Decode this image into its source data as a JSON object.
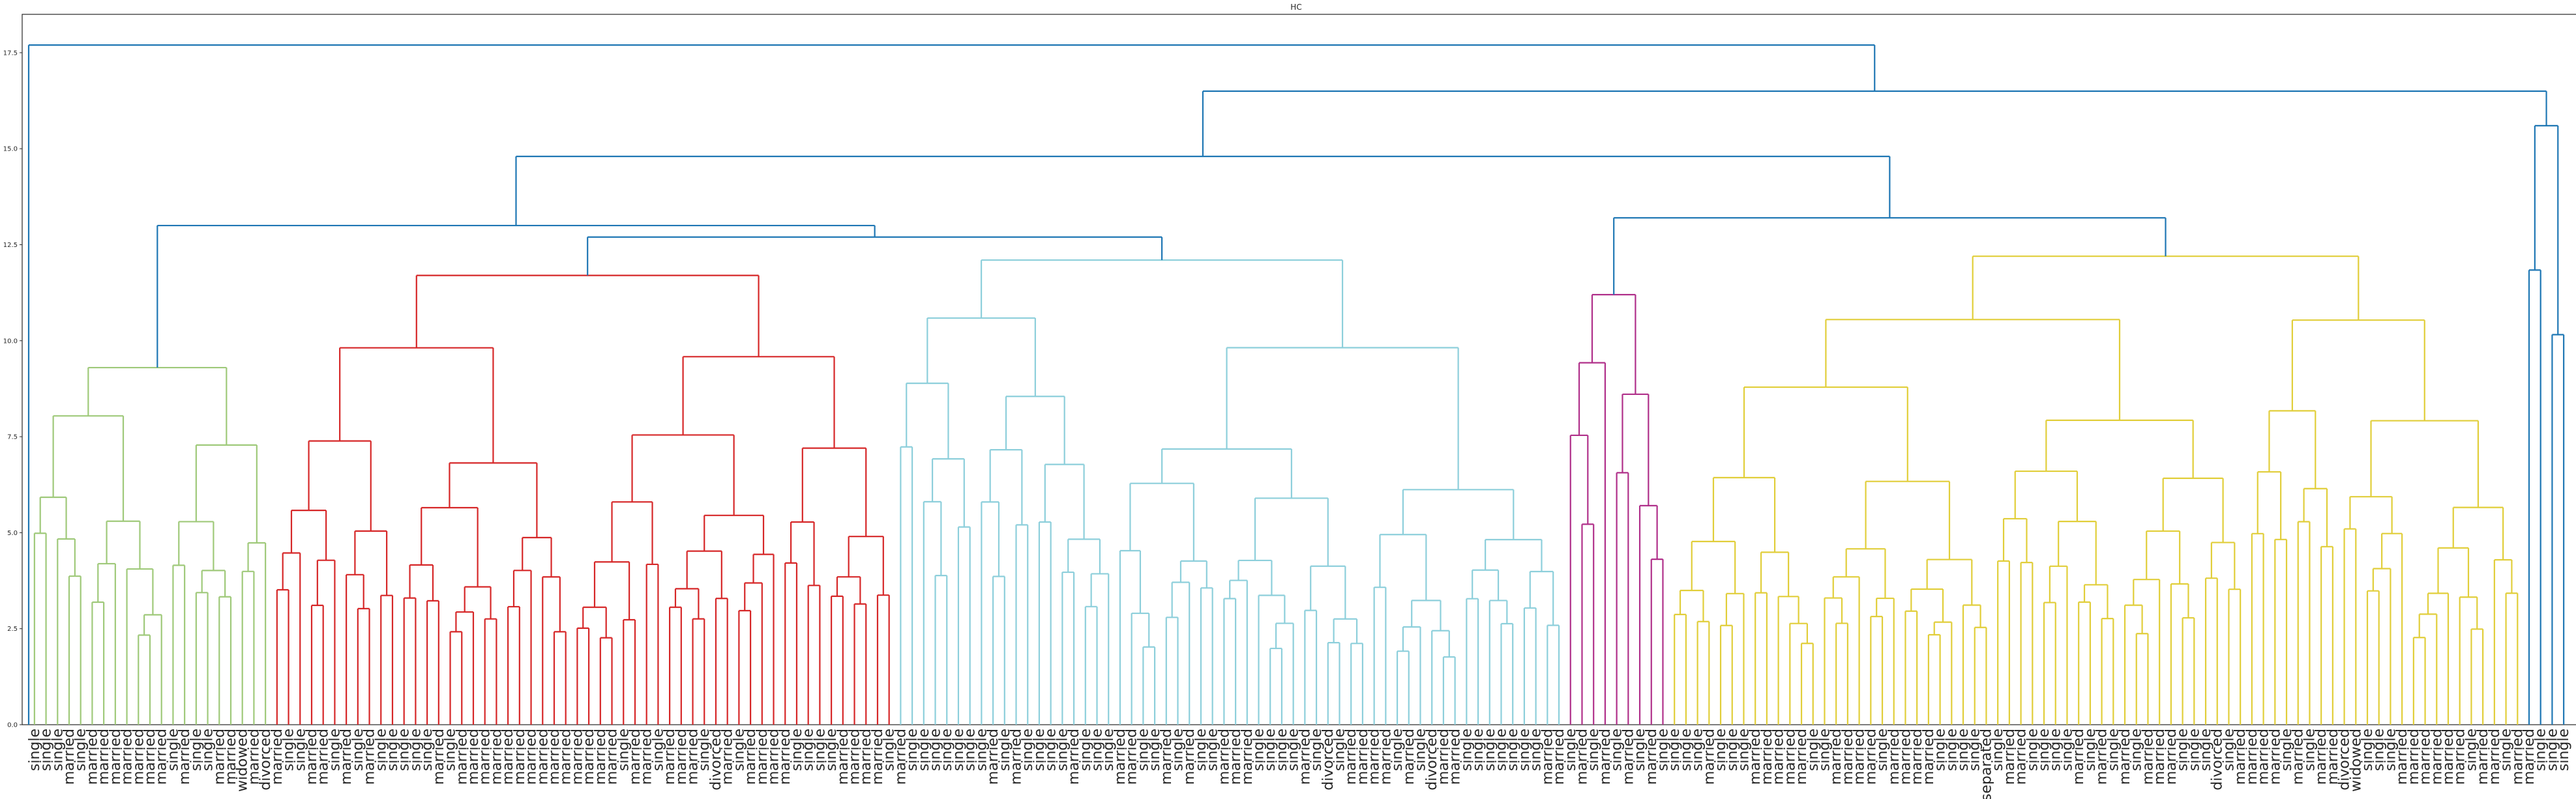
{
  "chart_data": {
    "type": "dendrogram",
    "title": "HC",
    "ylim": [
      0,
      18.5
    ],
    "yticks": [
      0.0,
      2.5,
      5.0,
      7.5,
      10.0,
      12.5,
      15.0,
      17.5
    ],
    "ytick_labels": [
      "0.0",
      "2.5",
      "5.0",
      "7.5",
      "10.0",
      "12.5",
      "15.0",
      "17.5"
    ],
    "grid": false,
    "colors": {
      "above_threshold": "#1f77b4",
      "cluster_1": "#9fc97a",
      "cluster_2": "#d62728",
      "cluster_3": "#8dcfdb",
      "cluster_4": "#b0308a",
      "cluster_5": "#e1ce3a"
    },
    "clusters": [
      {
        "color_key": "cluster_1",
        "labels": [
          "single",
          "single",
          "single",
          "married",
          "single",
          "married",
          "married",
          "married",
          "married",
          "married",
          "married",
          "married",
          "single",
          "married",
          "single",
          "single",
          "married",
          "married",
          "widowed",
          "married",
          "divorced"
        ]
      },
      {
        "color_key": "cluster_2",
        "labels": [
          "married",
          "single",
          "single",
          "married",
          "married",
          "single",
          "married",
          "single",
          "married",
          "single",
          "single",
          "single",
          "single",
          "single",
          "married",
          "single",
          "married",
          "married",
          "married",
          "married",
          "married",
          "married",
          "married",
          "married",
          "married",
          "married",
          "married",
          "married",
          "married",
          "married",
          "single",
          "married",
          "married",
          "single",
          "married",
          "married",
          "married",
          "single",
          "divorced",
          "married",
          "single",
          "married",
          "married",
          "married",
          "married",
          "single",
          "single",
          "single",
          "single",
          "married",
          "married",
          "married",
          "married",
          "single"
        ]
      },
      {
        "color_key": "cluster_3",
        "labels": [
          "married",
          "single",
          "single",
          "single",
          "single",
          "single",
          "single",
          "single",
          "married",
          "single",
          "married",
          "single",
          "single",
          "single",
          "single",
          "married",
          "single",
          "single",
          "single",
          "married",
          "married",
          "single",
          "single",
          "married",
          "single",
          "married",
          "single",
          "single",
          "married",
          "married",
          "married",
          "single",
          "single",
          "single",
          "single",
          "married",
          "single",
          "divorced",
          "single",
          "married",
          "married",
          "married",
          "married",
          "single",
          "married",
          "single",
          "divorced",
          "married",
          "married",
          "single",
          "single",
          "single",
          "single",
          "single",
          "single",
          "single",
          "married",
          "married"
        ]
      },
      {
        "color_key": "cluster_4",
        "labels": [
          "single",
          "married",
          "single",
          "married",
          "single",
          "married",
          "single",
          "married",
          "single"
        ]
      },
      {
        "color_key": "cluster_5",
        "labels": [
          "single",
          "single",
          "single",
          "married",
          "single",
          "single",
          "single",
          "married",
          "married",
          "married",
          "married",
          "married",
          "single",
          "single",
          "married",
          "married",
          "married",
          "married",
          "single",
          "married",
          "married",
          "married",
          "married",
          "single",
          "single",
          "single",
          "single",
          "separated",
          "single",
          "married",
          "married",
          "single",
          "single",
          "single",
          "single",
          "married",
          "single",
          "married",
          "single",
          "married",
          "single",
          "married",
          "married",
          "married",
          "single",
          "single",
          "single",
          "divorced",
          "single",
          "married",
          "married",
          "married",
          "married",
          "single",
          "married",
          "single",
          "married",
          "married",
          "divorced",
          "widowed",
          "single",
          "single",
          "single",
          "married",
          "married",
          "married",
          "married",
          "married",
          "married",
          "single",
          "married",
          "married",
          "single",
          "married"
        ]
      },
      {
        "color_key": "above_threshold",
        "labels": [
          "married",
          "single",
          "single",
          "single"
        ]
      }
    ]
  }
}
